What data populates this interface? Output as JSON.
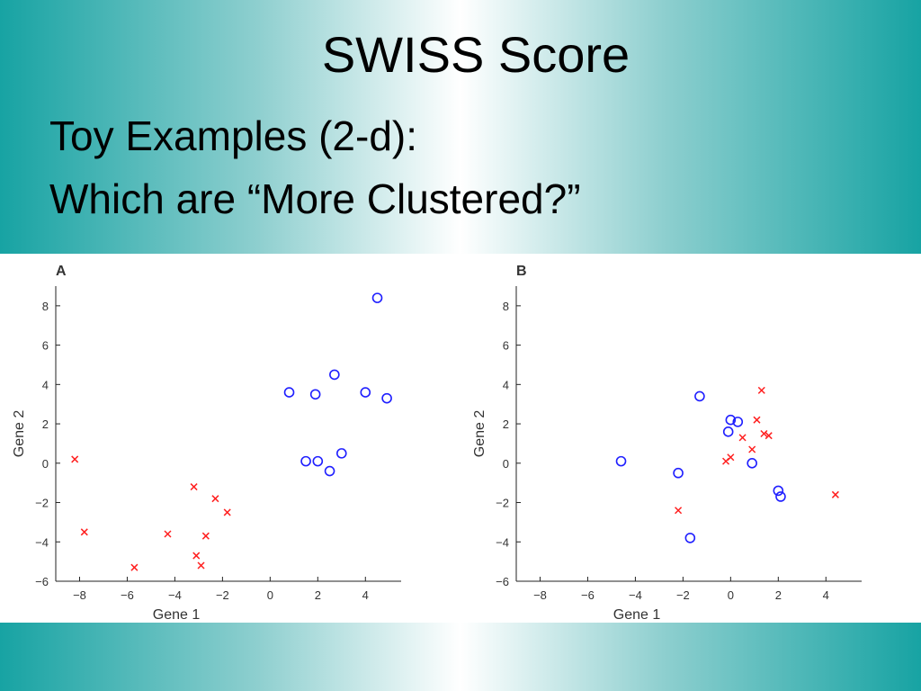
{
  "slide": {
    "title": "SWISS Score",
    "line1": "Toy Examples  (2-d):",
    "line2": "Which are “More Clustered?”"
  },
  "colors": {
    "blue_series": "#1f1fff",
    "red_series": "#ff1f1f"
  },
  "chart_data": [
    {
      "type": "scatter",
      "title": "A",
      "xlabel": "Gene 1",
      "ylabel": "Gene 2",
      "xlim": [
        -9,
        5.5
      ],
      "ylim": [
        -6,
        9
      ],
      "xticks": [
        -8,
        -6,
        -4,
        -2,
        0,
        2,
        4
      ],
      "yticks": [
        -6,
        -4,
        -2,
        0,
        2,
        4,
        6,
        8
      ],
      "grid": false,
      "series": [
        {
          "marker": "circle",
          "color": "#1f1fff",
          "points": [
            [
              4.5,
              8.4
            ],
            [
              2.7,
              4.5
            ],
            [
              0.8,
              3.6
            ],
            [
              1.9,
              3.5
            ],
            [
              4.0,
              3.6
            ],
            [
              4.9,
              3.3
            ],
            [
              3.0,
              0.5
            ],
            [
              1.5,
              0.1
            ],
            [
              2.0,
              0.1
            ],
            [
              2.5,
              -0.4
            ]
          ]
        },
        {
          "marker": "cross",
          "color": "#ff1f1f",
          "points": [
            [
              -8.2,
              0.2
            ],
            [
              -3.2,
              -1.2
            ],
            [
              -2.3,
              -1.8
            ],
            [
              -1.8,
              -2.5
            ],
            [
              -7.8,
              -3.5
            ],
            [
              -4.3,
              -3.6
            ],
            [
              -2.7,
              -3.7
            ],
            [
              -3.1,
              -4.7
            ],
            [
              -2.9,
              -5.2
            ],
            [
              -5.7,
              -5.3
            ]
          ]
        }
      ]
    },
    {
      "type": "scatter",
      "title": "B",
      "xlabel": "Gene 1",
      "ylabel": "Gene 2",
      "xlim": [
        -9,
        5.5
      ],
      "ylim": [
        -6,
        9
      ],
      "xticks": [
        -8,
        -6,
        -4,
        -2,
        0,
        2,
        4
      ],
      "yticks": [
        -6,
        -4,
        -2,
        0,
        2,
        4,
        6,
        8
      ],
      "grid": false,
      "series": [
        {
          "marker": "circle",
          "color": "#1f1fff",
          "points": [
            [
              -1.3,
              3.4
            ],
            [
              0.0,
              2.2
            ],
            [
              0.3,
              2.1
            ],
            [
              -0.1,
              1.6
            ],
            [
              0.9,
              0.0
            ],
            [
              -4.6,
              0.1
            ],
            [
              -2.2,
              -0.5
            ],
            [
              2.0,
              -1.4
            ],
            [
              2.1,
              -1.7
            ],
            [
              -1.7,
              -3.8
            ]
          ]
        },
        {
          "marker": "cross",
          "color": "#ff1f1f",
          "points": [
            [
              1.3,
              3.7
            ],
            [
              1.1,
              2.2
            ],
            [
              1.4,
              1.5
            ],
            [
              1.6,
              1.4
            ],
            [
              0.5,
              1.3
            ],
            [
              0.9,
              0.7
            ],
            [
              0.0,
              0.3
            ],
            [
              -0.2,
              0.1
            ],
            [
              -2.2,
              -2.4
            ],
            [
              4.4,
              -1.6
            ]
          ]
        }
      ]
    }
  ]
}
